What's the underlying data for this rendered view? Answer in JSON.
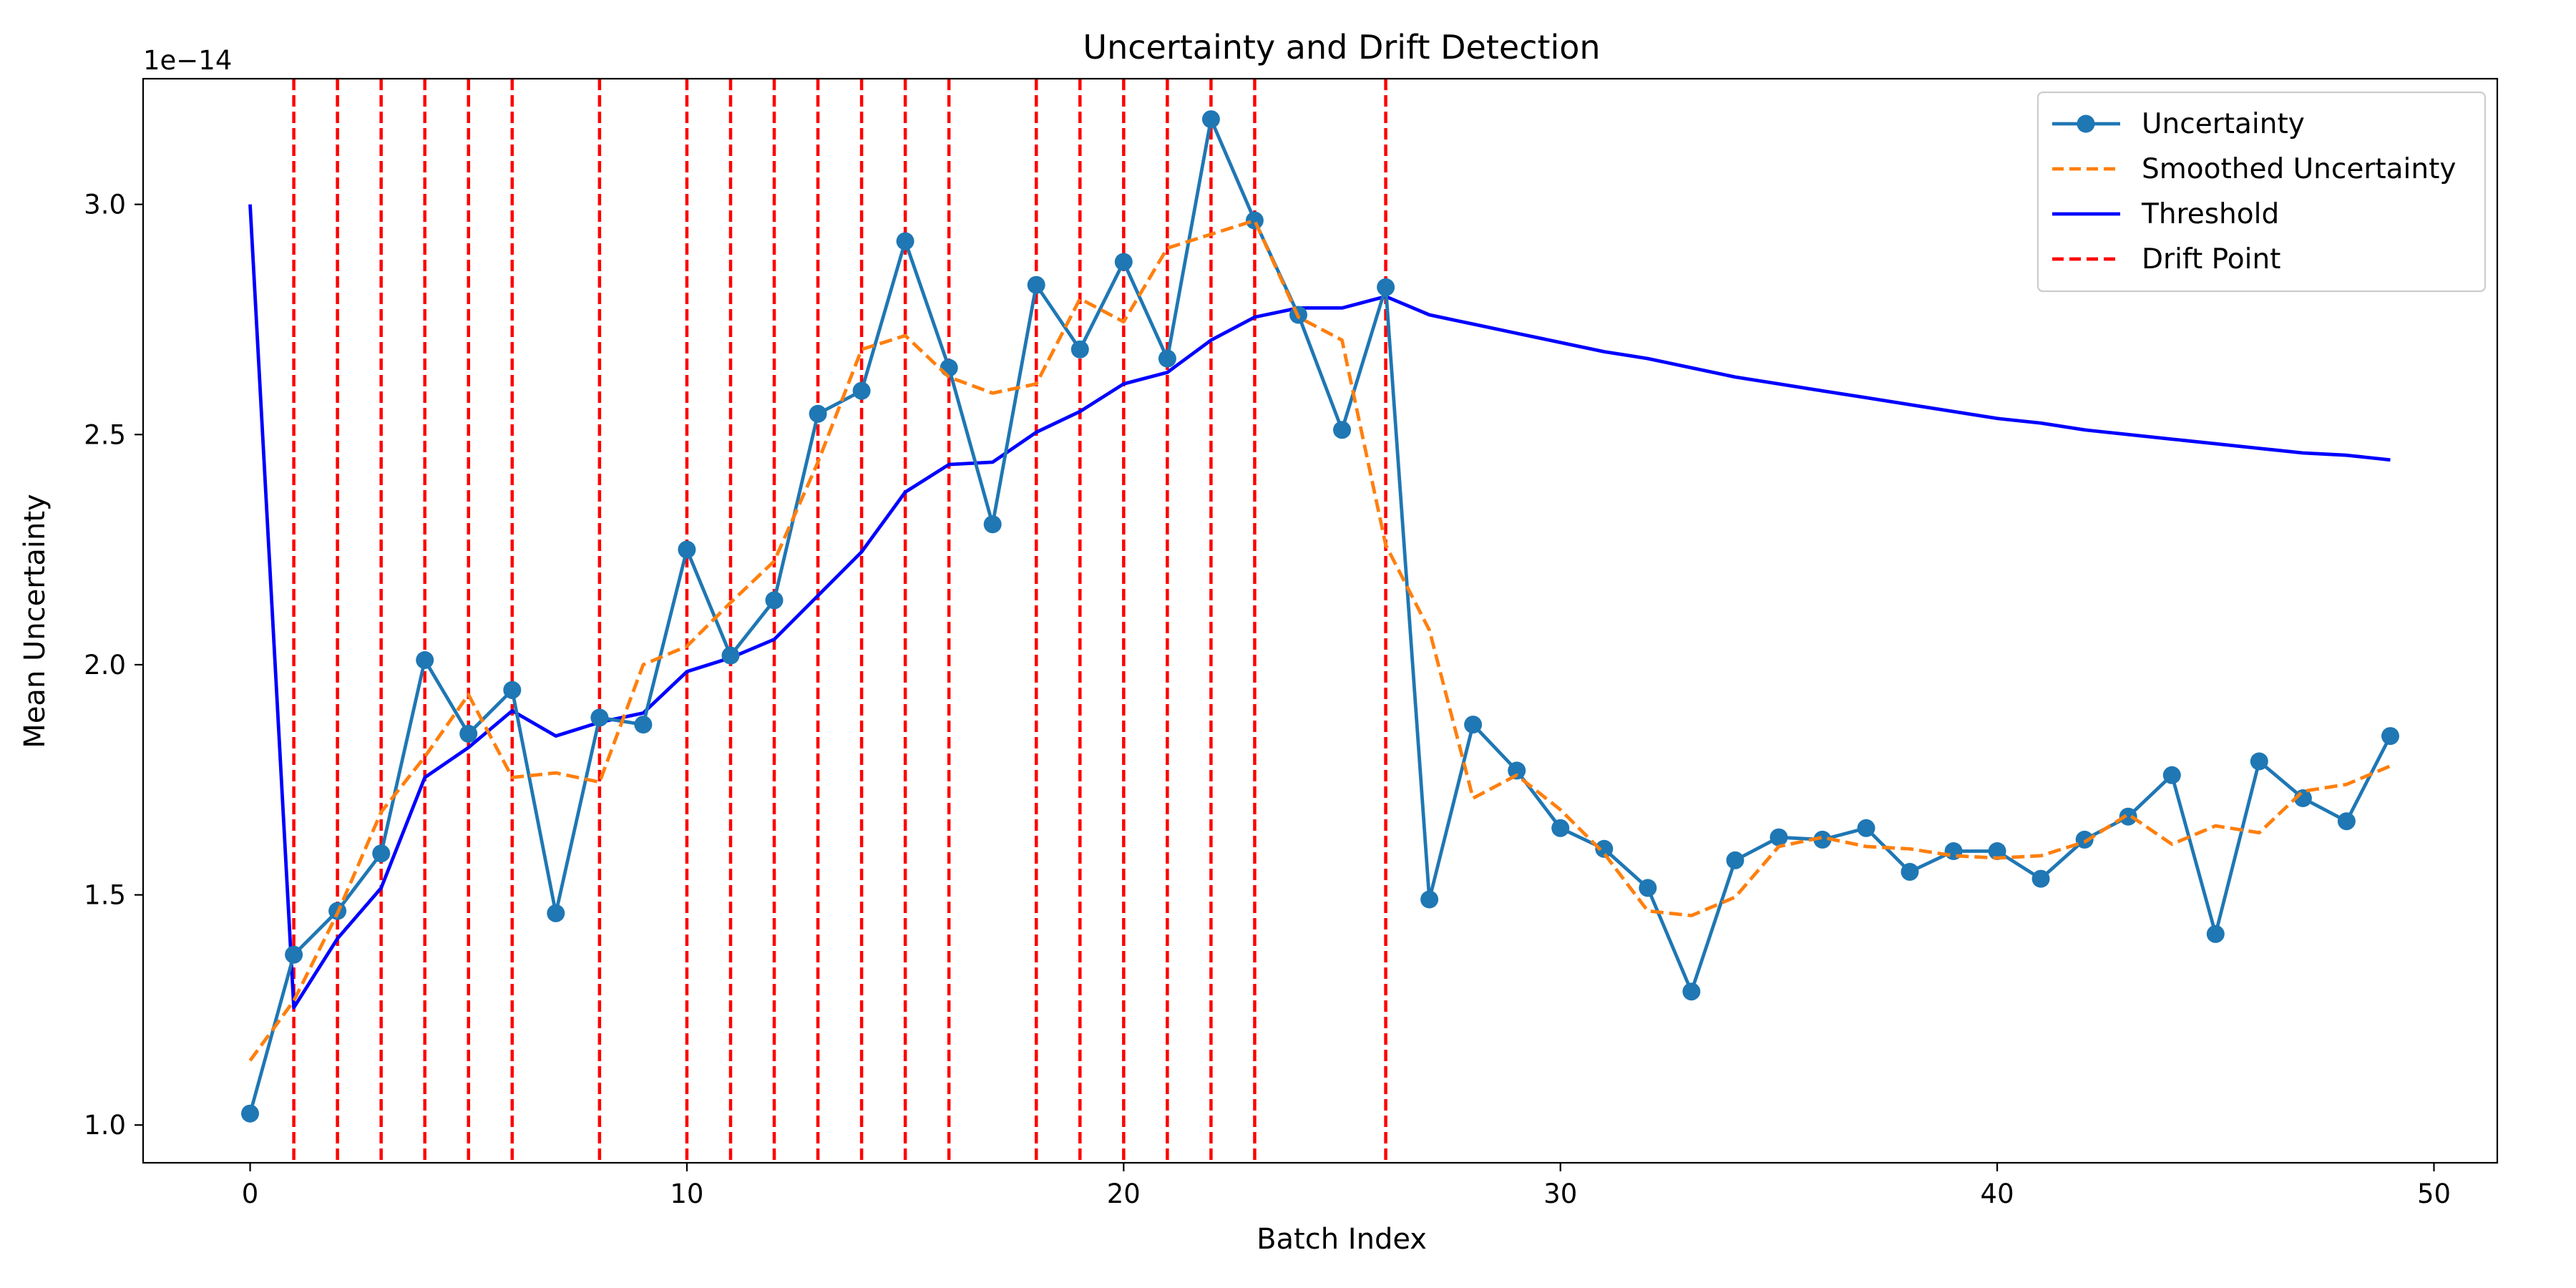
{
  "chart_data": {
    "type": "line",
    "title": "Uncertainty and Drift Detection",
    "xlabel": "Batch Index",
    "ylabel": "Mean Uncertainty",
    "y_exponent_label": "1e−14",
    "xlim": [
      -2.45,
      51.45
    ],
    "ylim": [
      0.918,
      3.273
    ],
    "xticks": [
      0,
      10,
      20,
      30,
      40,
      50
    ],
    "yticks": [
      1.0,
      1.5,
      2.0,
      2.5,
      3.0
    ],
    "ytick_labels": [
      "1.0",
      "1.5",
      "2.0",
      "2.5",
      "3.0"
    ],
    "grid": false,
    "legend_position": "top-right",
    "series": [
      {
        "name": "Uncertainty",
        "style": "line-marker",
        "color": "#1f77b4",
        "x": [
          0,
          1,
          2,
          3,
          4,
          5,
          6,
          7,
          8,
          9,
          10,
          11,
          12,
          13,
          14,
          15,
          16,
          17,
          18,
          19,
          20,
          21,
          22,
          23,
          24,
          25,
          26,
          27,
          28,
          29,
          30,
          31,
          32,
          33,
          34,
          35,
          36,
          37,
          38,
          39,
          40,
          41,
          42,
          43,
          44,
          45,
          46,
          47,
          48,
          49
        ],
        "values": [
          1.025,
          1.37,
          1.465,
          1.59,
          2.01,
          1.85,
          1.945,
          1.46,
          1.885,
          1.87,
          2.25,
          2.02,
          2.14,
          2.545,
          2.595,
          2.92,
          2.645,
          2.305,
          2.825,
          2.685,
          2.875,
          2.665,
          3.185,
          2.965,
          2.76,
          2.51,
          2.82,
          1.49,
          1.87,
          1.77,
          1.645,
          1.6,
          1.515,
          1.29,
          1.575,
          1.625,
          1.62,
          1.645,
          1.55,
          1.595,
          1.595,
          1.535,
          1.62,
          1.67,
          1.76,
          1.415,
          1.79,
          1.71,
          1.66,
          1.845
        ]
      },
      {
        "name": "Smoothed Uncertainty",
        "style": "dashed",
        "color": "#ff7f0e",
        "x": [
          0,
          1,
          2,
          3,
          4,
          5,
          6,
          7,
          8,
          9,
          10,
          11,
          12,
          13,
          14,
          15,
          16,
          17,
          18,
          19,
          20,
          21,
          22,
          23,
          24,
          25,
          26,
          27,
          28,
          29,
          30,
          31,
          32,
          33,
          34,
          35,
          36,
          37,
          38,
          39,
          40,
          41,
          42,
          43,
          44,
          45,
          46,
          47,
          48,
          49
        ],
        "values": [
          1.14,
          1.27,
          1.46,
          1.68,
          1.8,
          1.935,
          1.755,
          1.765,
          1.745,
          2.0,
          2.04,
          2.135,
          2.225,
          2.44,
          2.685,
          2.715,
          2.625,
          2.59,
          2.61,
          2.795,
          2.745,
          2.905,
          2.935,
          2.965,
          2.755,
          2.705,
          2.26,
          2.075,
          1.71,
          1.76,
          1.685,
          1.59,
          1.465,
          1.455,
          1.495,
          1.605,
          1.625,
          1.605,
          1.6,
          1.585,
          1.58,
          1.585,
          1.615,
          1.675,
          1.61,
          1.65,
          1.635,
          1.725,
          1.74,
          1.78
        ]
      },
      {
        "name": "Threshold",
        "style": "solid",
        "color": "#0000ff",
        "x": [
          0,
          1,
          2,
          3,
          4,
          5,
          6,
          7,
          8,
          9,
          10,
          11,
          12,
          13,
          14,
          15,
          16,
          17,
          18,
          19,
          20,
          21,
          22,
          23,
          24,
          25,
          26,
          27,
          28,
          29,
          30,
          31,
          32,
          33,
          34,
          35,
          36,
          37,
          38,
          39,
          40,
          41,
          42,
          43,
          44,
          45,
          46,
          47,
          48,
          49
        ],
        "values": [
          3.0,
          1.255,
          1.405,
          1.515,
          1.755,
          1.82,
          1.9,
          1.845,
          1.875,
          1.895,
          1.985,
          2.015,
          2.055,
          2.15,
          2.245,
          2.375,
          2.435,
          2.44,
          2.505,
          2.55,
          2.61,
          2.635,
          2.705,
          2.755,
          2.775,
          2.775,
          2.8,
          2.76,
          2.74,
          2.72,
          2.7,
          2.68,
          2.665,
          2.645,
          2.625,
          2.61,
          2.595,
          2.58,
          2.565,
          2.55,
          2.535,
          2.525,
          2.51,
          2.5,
          2.49,
          2.48,
          2.47,
          2.46,
          2.455,
          2.445
        ]
      }
    ],
    "drift_points": {
      "name": "Drift Point",
      "style": "vertical-dashed",
      "color": "#ff0000",
      "x": [
        1,
        2,
        3,
        4,
        5,
        6,
        8,
        10,
        11,
        12,
        13,
        14,
        15,
        16,
        18,
        19,
        20,
        21,
        22,
        23,
        26
      ]
    }
  }
}
